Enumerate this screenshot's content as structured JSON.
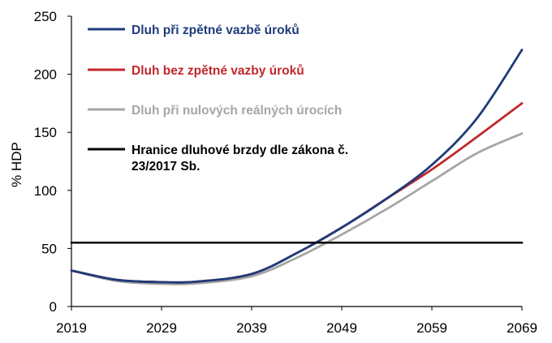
{
  "chart_data": {
    "type": "line",
    "ylabel": "% HDP",
    "xlim": [
      2019,
      2069
    ],
    "ylim": [
      0,
      250
    ],
    "xticks": [
      "2019",
      "2029",
      "2039",
      "2049",
      "2059",
      "2069"
    ],
    "yticks": [
      "0",
      "50",
      "100",
      "150",
      "200",
      "250"
    ],
    "grid": false,
    "legend_position": "top-left",
    "series": [
      {
        "name": "Dluh při zpětné vazbě úroků",
        "color": "#1f3c7a",
        "x": [
          2019,
          2024,
          2029,
          2033,
          2039,
          2044,
          2049,
          2054,
          2059,
          2064,
          2069
        ],
        "values": [
          31,
          23,
          21,
          21.5,
          28,
          46,
          68,
          93,
          122,
          162,
          221
        ]
      },
      {
        "name": "Dluh bez zpětné vazby úroků",
        "color": "#c0282d",
        "x": [
          2019,
          2024,
          2029,
          2033,
          2039,
          2044,
          2049,
          2054,
          2059,
          2064,
          2069
        ],
        "values": [
          31,
          23,
          21,
          21.5,
          28,
          46,
          68,
          93,
          118,
          146,
          175
        ]
      },
      {
        "name": "Dluh při nulových reálných úrocích",
        "color": "#a6a6a6",
        "x": [
          2019,
          2024,
          2029,
          2033,
          2039,
          2044,
          2049,
          2054,
          2059,
          2064,
          2069
        ],
        "values": [
          31,
          22,
          19.5,
          20,
          26,
          42,
          62,
          84,
          108,
          132,
          149
        ]
      },
      {
        "name": "Hranice dluhové brzdy dle zákona č. 23/2017 Sb.",
        "color": "#000000",
        "x": [
          2019,
          2069
        ],
        "values": [
          55,
          55
        ]
      }
    ]
  }
}
